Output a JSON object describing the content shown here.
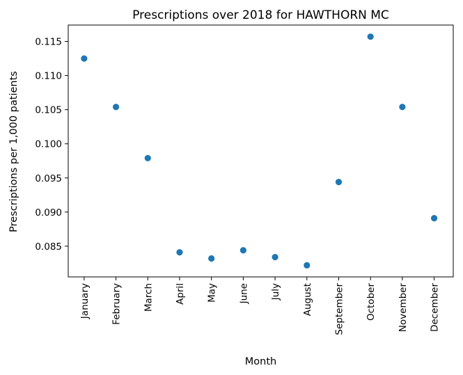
{
  "chart_data": {
    "type": "scatter",
    "title": "Prescriptions over 2018 for HAWTHORN MC",
    "xlabel": "Month",
    "ylabel": "Prescriptions per 1,000 patients",
    "categories": [
      "January",
      "February",
      "March",
      "April",
      "May",
      "June",
      "July",
      "August",
      "September",
      "October",
      "November",
      "December"
    ],
    "series": [
      {
        "values": [
          0.1125,
          0.1054,
          0.0979,
          0.0841,
          0.0832,
          0.0844,
          0.0834,
          0.0822,
          0.0944,
          0.1157,
          0.1054,
          0.0891
        ],
        "color": "#1f77b4"
      }
    ],
    "yticks": [
      0.085,
      0.09,
      0.095,
      0.1,
      0.105,
      0.11,
      0.115
    ],
    "ytick_labels": [
      "0.085",
      "0.090",
      "0.095",
      "0.100",
      "0.105",
      "0.110",
      "0.115"
    ],
    "ylim": [
      0.0805,
      0.1174
    ],
    "grid": false,
    "legend": "none"
  }
}
